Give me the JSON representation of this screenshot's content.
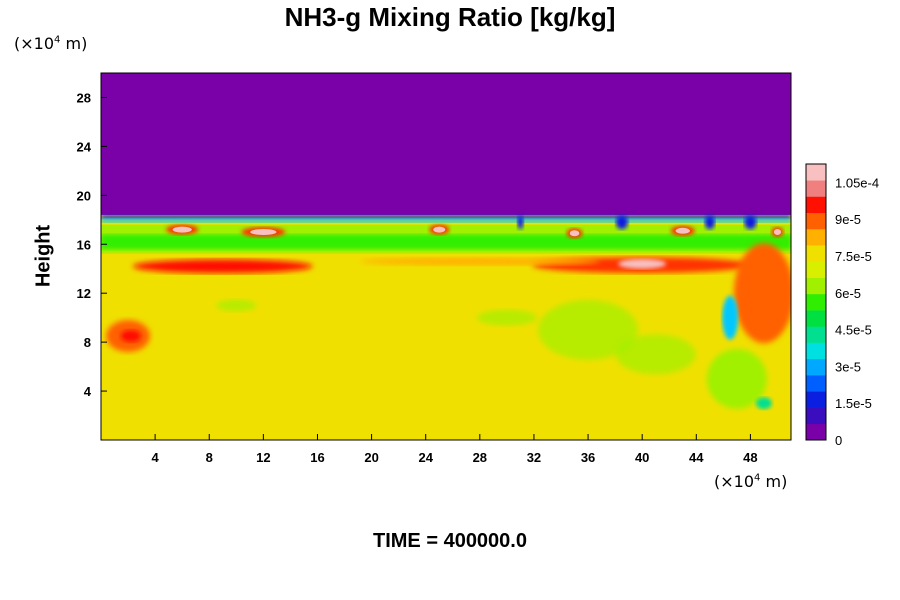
{
  "chart_data": {
    "type": "heatmap",
    "title": "NH3-g Mixing Ratio [kg/kg]",
    "ylabel": "Height",
    "xlabel": "",
    "x_unit_label": "(×10⁴ m)",
    "y_unit_label": "(×10⁴ m)",
    "footer": "TIME = 400000.0",
    "xlim": [
      0,
      51
    ],
    "ylim": [
      0,
      30
    ],
    "x_ticks": [
      4,
      8,
      12,
      16,
      20,
      24,
      28,
      32,
      36,
      40,
      44,
      48
    ],
    "y_ticks": [
      4,
      8,
      12,
      16,
      20,
      24,
      28
    ],
    "colorbar": {
      "range": [
        0,
        0.0001125
      ],
      "tick_labels": [
        "0",
        "1.5e-5",
        "3e-5",
        "4.5e-5",
        "6e-5",
        "7.5e-5",
        "9e-5",
        "1.05e-4"
      ],
      "tick_values": [
        0,
        1.5e-05,
        3e-05,
        4.5e-05,
        6e-05,
        7.5e-05,
        9e-05,
        0.000105
      ],
      "colors": [
        "#7a00a8",
        "#3a0dbe",
        "#0a1fe0",
        "#0060ff",
        "#00a8ff",
        "#00e0e0",
        "#00e090",
        "#00e040",
        "#30ee00",
        "#a0f000",
        "#d8f000",
        "#f0e000",
        "#ffb000",
        "#ff6000",
        "#ff1000",
        "#f08080",
        "#f8c0c0"
      ]
    },
    "regions": [
      {
        "description": "y 18.5-30",
        "value": 0
      },
      {
        "description": "y 15.5-18.5 layer",
        "value": 6e-05
      },
      {
        "description": "y 12.5-15.5 band",
        "value": 9e-05
      },
      {
        "description": "y 0-12.5 background",
        "value": 7.8e-05
      }
    ]
  }
}
